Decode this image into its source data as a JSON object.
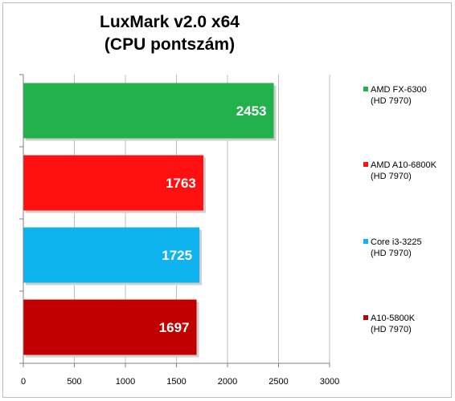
{
  "chart_data": {
    "type": "bar",
    "orientation": "horizontal",
    "title_line1": "LuxMark v2.0  x64",
    "title_line2": "(CPU pontszám)",
    "xlim": [
      0,
      3000
    ],
    "x_ticks": [
      0,
      500,
      1000,
      1500,
      2000,
      2500,
      3000
    ],
    "grid": true,
    "legend_position": "right",
    "series": [
      {
        "name_line1": "AMD FX-6300",
        "name_line2": "(HD 7970)",
        "value": 2453,
        "color": "#22b14c"
      },
      {
        "name_line1": "AMD A10-6800K",
        "name_line2": "(HD 7970)",
        "value": 1763,
        "color": "#ff1010"
      },
      {
        "name_line1": "Core i3-3225",
        "name_line2": "(HD 7970)",
        "value": 1725,
        "color": "#0fb4ef"
      },
      {
        "name_line1": "A10-5800K",
        "name_line2": "(HD 7970)",
        "value": 1697,
        "color": "#c00000"
      }
    ]
  }
}
